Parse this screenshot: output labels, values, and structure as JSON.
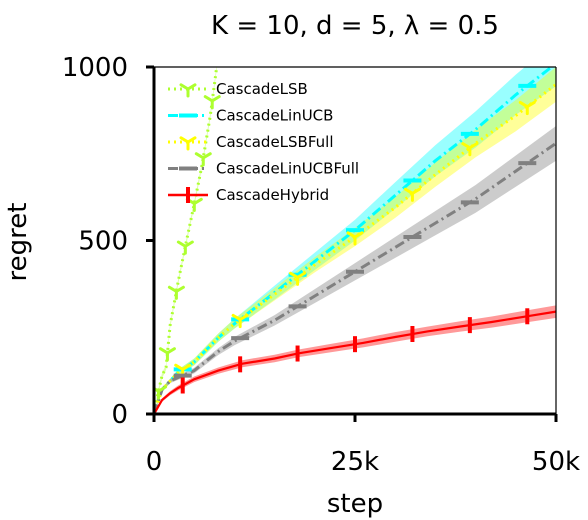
{
  "chart_data": {
    "type": "line",
    "title": "K = 10, d = 5, λ = 0.5",
    "xlabel": "step",
    "ylabel": "regret",
    "xlim": [
      0,
      50000
    ],
    "ylim": [
      0,
      1000
    ],
    "x_ticks": [
      {
        "value": 0,
        "label": "0"
      },
      {
        "value": 25000,
        "label": "25k"
      },
      {
        "value": 50000,
        "label": "50k"
      }
    ],
    "y_ticks": [
      {
        "value": 0,
        "label": "0"
      },
      {
        "value": 500,
        "label": "500"
      },
      {
        "value": 1000,
        "label": "1000"
      }
    ],
    "grid": false,
    "legend_position": "top-left",
    "series": [
      {
        "name": "CascadeLSB",
        "color": "#adff2f",
        "linestyle": "dotted",
        "marker": "tri_down",
        "x": [
          0,
          500,
          1000,
          1500,
          2000,
          3000,
          4000,
          5000,
          6000,
          7000,
          7800
        ],
        "y": [
          0,
          60,
          110,
          135,
          255,
          380,
          495,
          605,
          720,
          860,
          1000
        ],
        "band": 8
      },
      {
        "name": "CascadeLinUCB",
        "color": "#00ffff",
        "linestyle": "dashdot",
        "marker": "hline",
        "x": [
          0,
          1000,
          3000,
          5000,
          8000,
          10000,
          15000,
          20000,
          25000,
          30000,
          35000,
          40000,
          45000,
          50000
        ],
        "y": [
          0,
          70,
          120,
          150,
          220,
          260,
          350,
          440,
          530,
          630,
          730,
          820,
          920,
          1010
        ],
        "band": [
          0,
          5,
          8,
          10,
          12,
          14,
          20,
          25,
          30,
          38,
          45,
          52,
          58,
          65
        ]
      },
      {
        "name": "CascadeLSBFull",
        "color": "#ffff00",
        "linestyle": "dotted",
        "marker": "tri_down",
        "x": [
          0,
          1000,
          3000,
          5000,
          8000,
          10000,
          15000,
          20000,
          25000,
          30000,
          35000,
          40000,
          45000,
          50000
        ],
        "y": [
          0,
          70,
          120,
          150,
          220,
          260,
          345,
          430,
          510,
          595,
          690,
          780,
          860,
          950
        ],
        "band": [
          0,
          5,
          8,
          10,
          12,
          14,
          18,
          22,
          26,
          30,
          35,
          40,
          45,
          50
        ]
      },
      {
        "name": "CascadeLinUCBFull",
        "color": "#808080",
        "linestyle": "dashdot",
        "marker": "hline",
        "x": [
          0,
          1000,
          2000,
          5000,
          8000,
          10000,
          15000,
          20000,
          25000,
          30000,
          35000,
          40000,
          45000,
          50000
        ],
        "y": [
          0,
          70,
          95,
          125,
          180,
          210,
          270,
          340,
          410,
          480,
          550,
          620,
          700,
          780
        ],
        "band": [
          0,
          5,
          6,
          8,
          10,
          12,
          15,
          20,
          25,
          30,
          35,
          40,
          45,
          50
        ]
      },
      {
        "name": "CascadeHybrid",
        "color": "#ff0000",
        "linestyle": "solid",
        "marker": "vline",
        "x": [
          0,
          500,
          1000,
          2000,
          3000,
          5000,
          8000,
          11000,
          15000,
          18000,
          22000,
          26000,
          30000,
          34000,
          38000,
          42000,
          46000,
          50000
        ],
        "y": [
          0,
          20,
          40,
          60,
          75,
          100,
          125,
          145,
          160,
          175,
          190,
          205,
          222,
          238,
          252,
          265,
          280,
          295
        ],
        "band": [
          0,
          3,
          5,
          6,
          7,
          8,
          9,
          10,
          11,
          11,
          12,
          13,
          14,
          14,
          15,
          16,
          17,
          18
        ]
      }
    ]
  }
}
